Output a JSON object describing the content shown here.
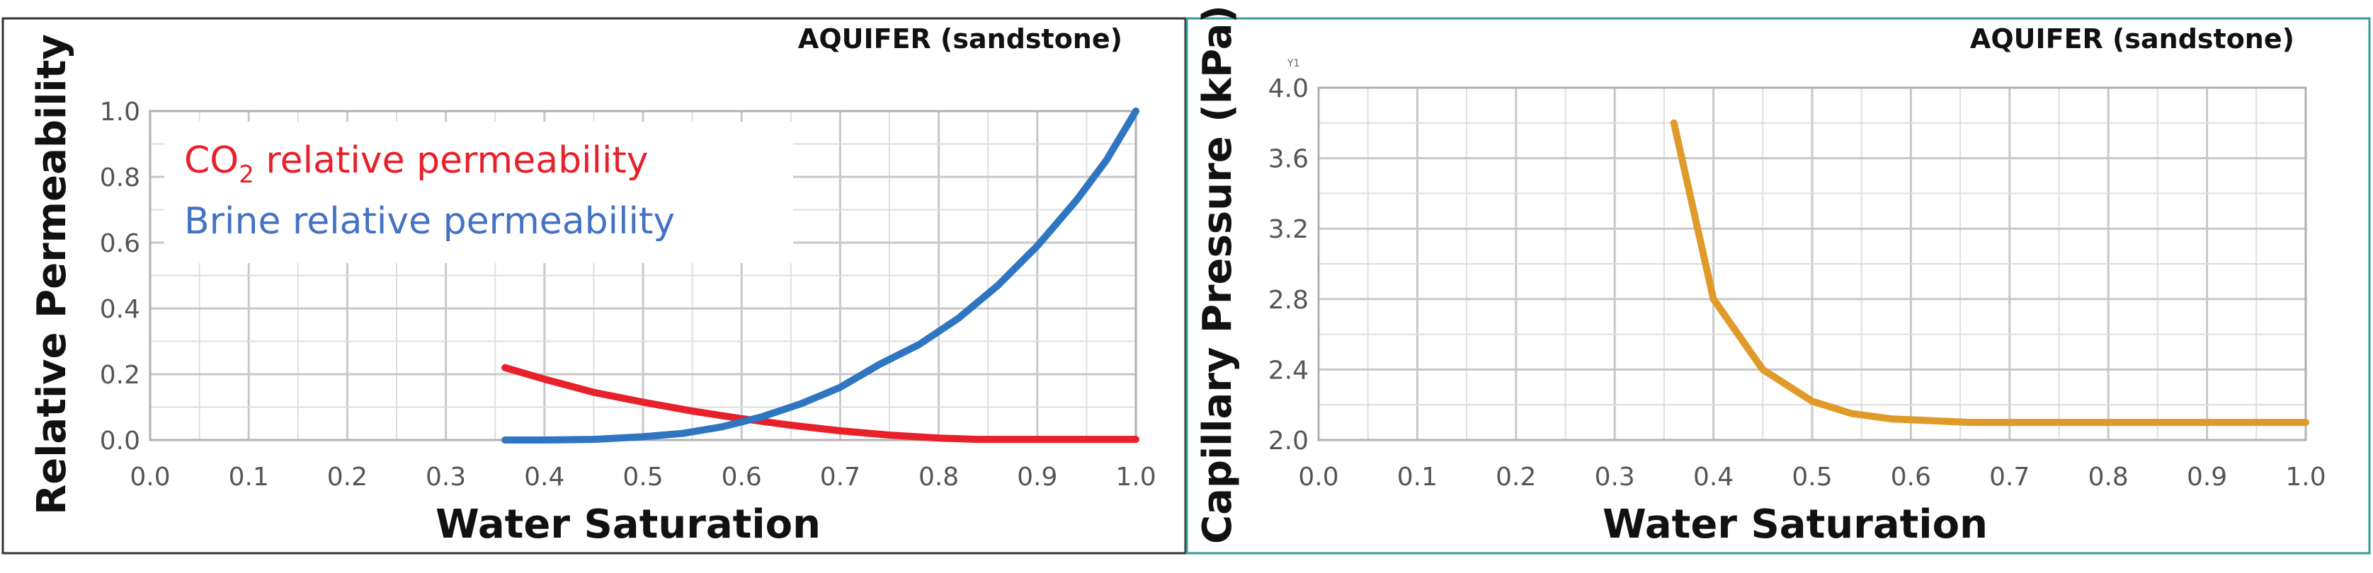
{
  "chart_data": [
    {
      "type": "line",
      "title": "AQUIFER (sandstone)",
      "xlabel": "Water Saturation",
      "ylabel": "Relative Permeability",
      "xlim": [
        0.0,
        1.0
      ],
      "ylim": [
        0.0,
        1.0
      ],
      "xticks": [
        "0.0",
        "0.1",
        "0.2",
        "0.3",
        "0.4",
        "0.5",
        "0.6",
        "0.7",
        "0.8",
        "0.9",
        "1.0"
      ],
      "yticks": [
        "0.0",
        "0.2",
        "0.4",
        "0.6",
        "0.8",
        "1.0"
      ],
      "legend": [
        {
          "prefix": "CO",
          "sub": "2",
          "suffix": " relative permeability",
          "color": "#e8202a"
        },
        {
          "prefix": "Brine relative permeability",
          "sub": "",
          "suffix": "",
          "color": "#4472c4"
        }
      ],
      "series": [
        {
          "color": "#e8202a",
          "x": [
            0.36,
            0.4,
            0.45,
            0.5,
            0.55,
            0.6,
            0.65,
            0.7,
            0.75,
            0.8,
            0.84,
            0.9,
            1.0
          ],
          "y": [
            0.22,
            0.185,
            0.145,
            0.115,
            0.088,
            0.065,
            0.045,
            0.028,
            0.015,
            0.006,
            0.002,
            0.002,
            0.002
          ]
        },
        {
          "color": "#2e75c2",
          "x": [
            0.36,
            0.4,
            0.45,
            0.5,
            0.54,
            0.58,
            0.62,
            0.66,
            0.7,
            0.74,
            0.78,
            0.82,
            0.86,
            0.9,
            0.94,
            0.97,
            1.0
          ],
          "y": [
            0.0,
            0.0,
            0.002,
            0.01,
            0.02,
            0.04,
            0.07,
            0.11,
            0.16,
            0.23,
            0.29,
            0.37,
            0.47,
            0.59,
            0.73,
            0.85,
            1.0
          ]
        }
      ]
    },
    {
      "type": "line",
      "title": "AQUIFER (sandstone)",
      "xlabel": "Water Saturation",
      "ylabel": "Capillary Pressure (kPa)",
      "axis_tag": "Y1",
      "xlim": [
        0.0,
        1.0
      ],
      "ylim": [
        2.0,
        4.0
      ],
      "xticks": [
        "0.0",
        "0.1",
        "0.2",
        "0.3",
        "0.4",
        "0.5",
        "0.6",
        "0.7",
        "0.8",
        "0.9",
        "1.0"
      ],
      "yticks": [
        "2.0",
        "2.4",
        "2.8",
        "3.2",
        "3.6",
        "4.0"
      ],
      "series": [
        {
          "color": "#e09a2a",
          "x": [
            0.36,
            0.4,
            0.45,
            0.5,
            0.54,
            0.58,
            0.62,
            0.66,
            0.7,
            0.8,
            1.0
          ],
          "y": [
            3.8,
            2.8,
            2.4,
            2.22,
            2.15,
            2.12,
            2.11,
            2.1,
            2.1,
            2.1,
            2.1
          ]
        }
      ]
    }
  ]
}
